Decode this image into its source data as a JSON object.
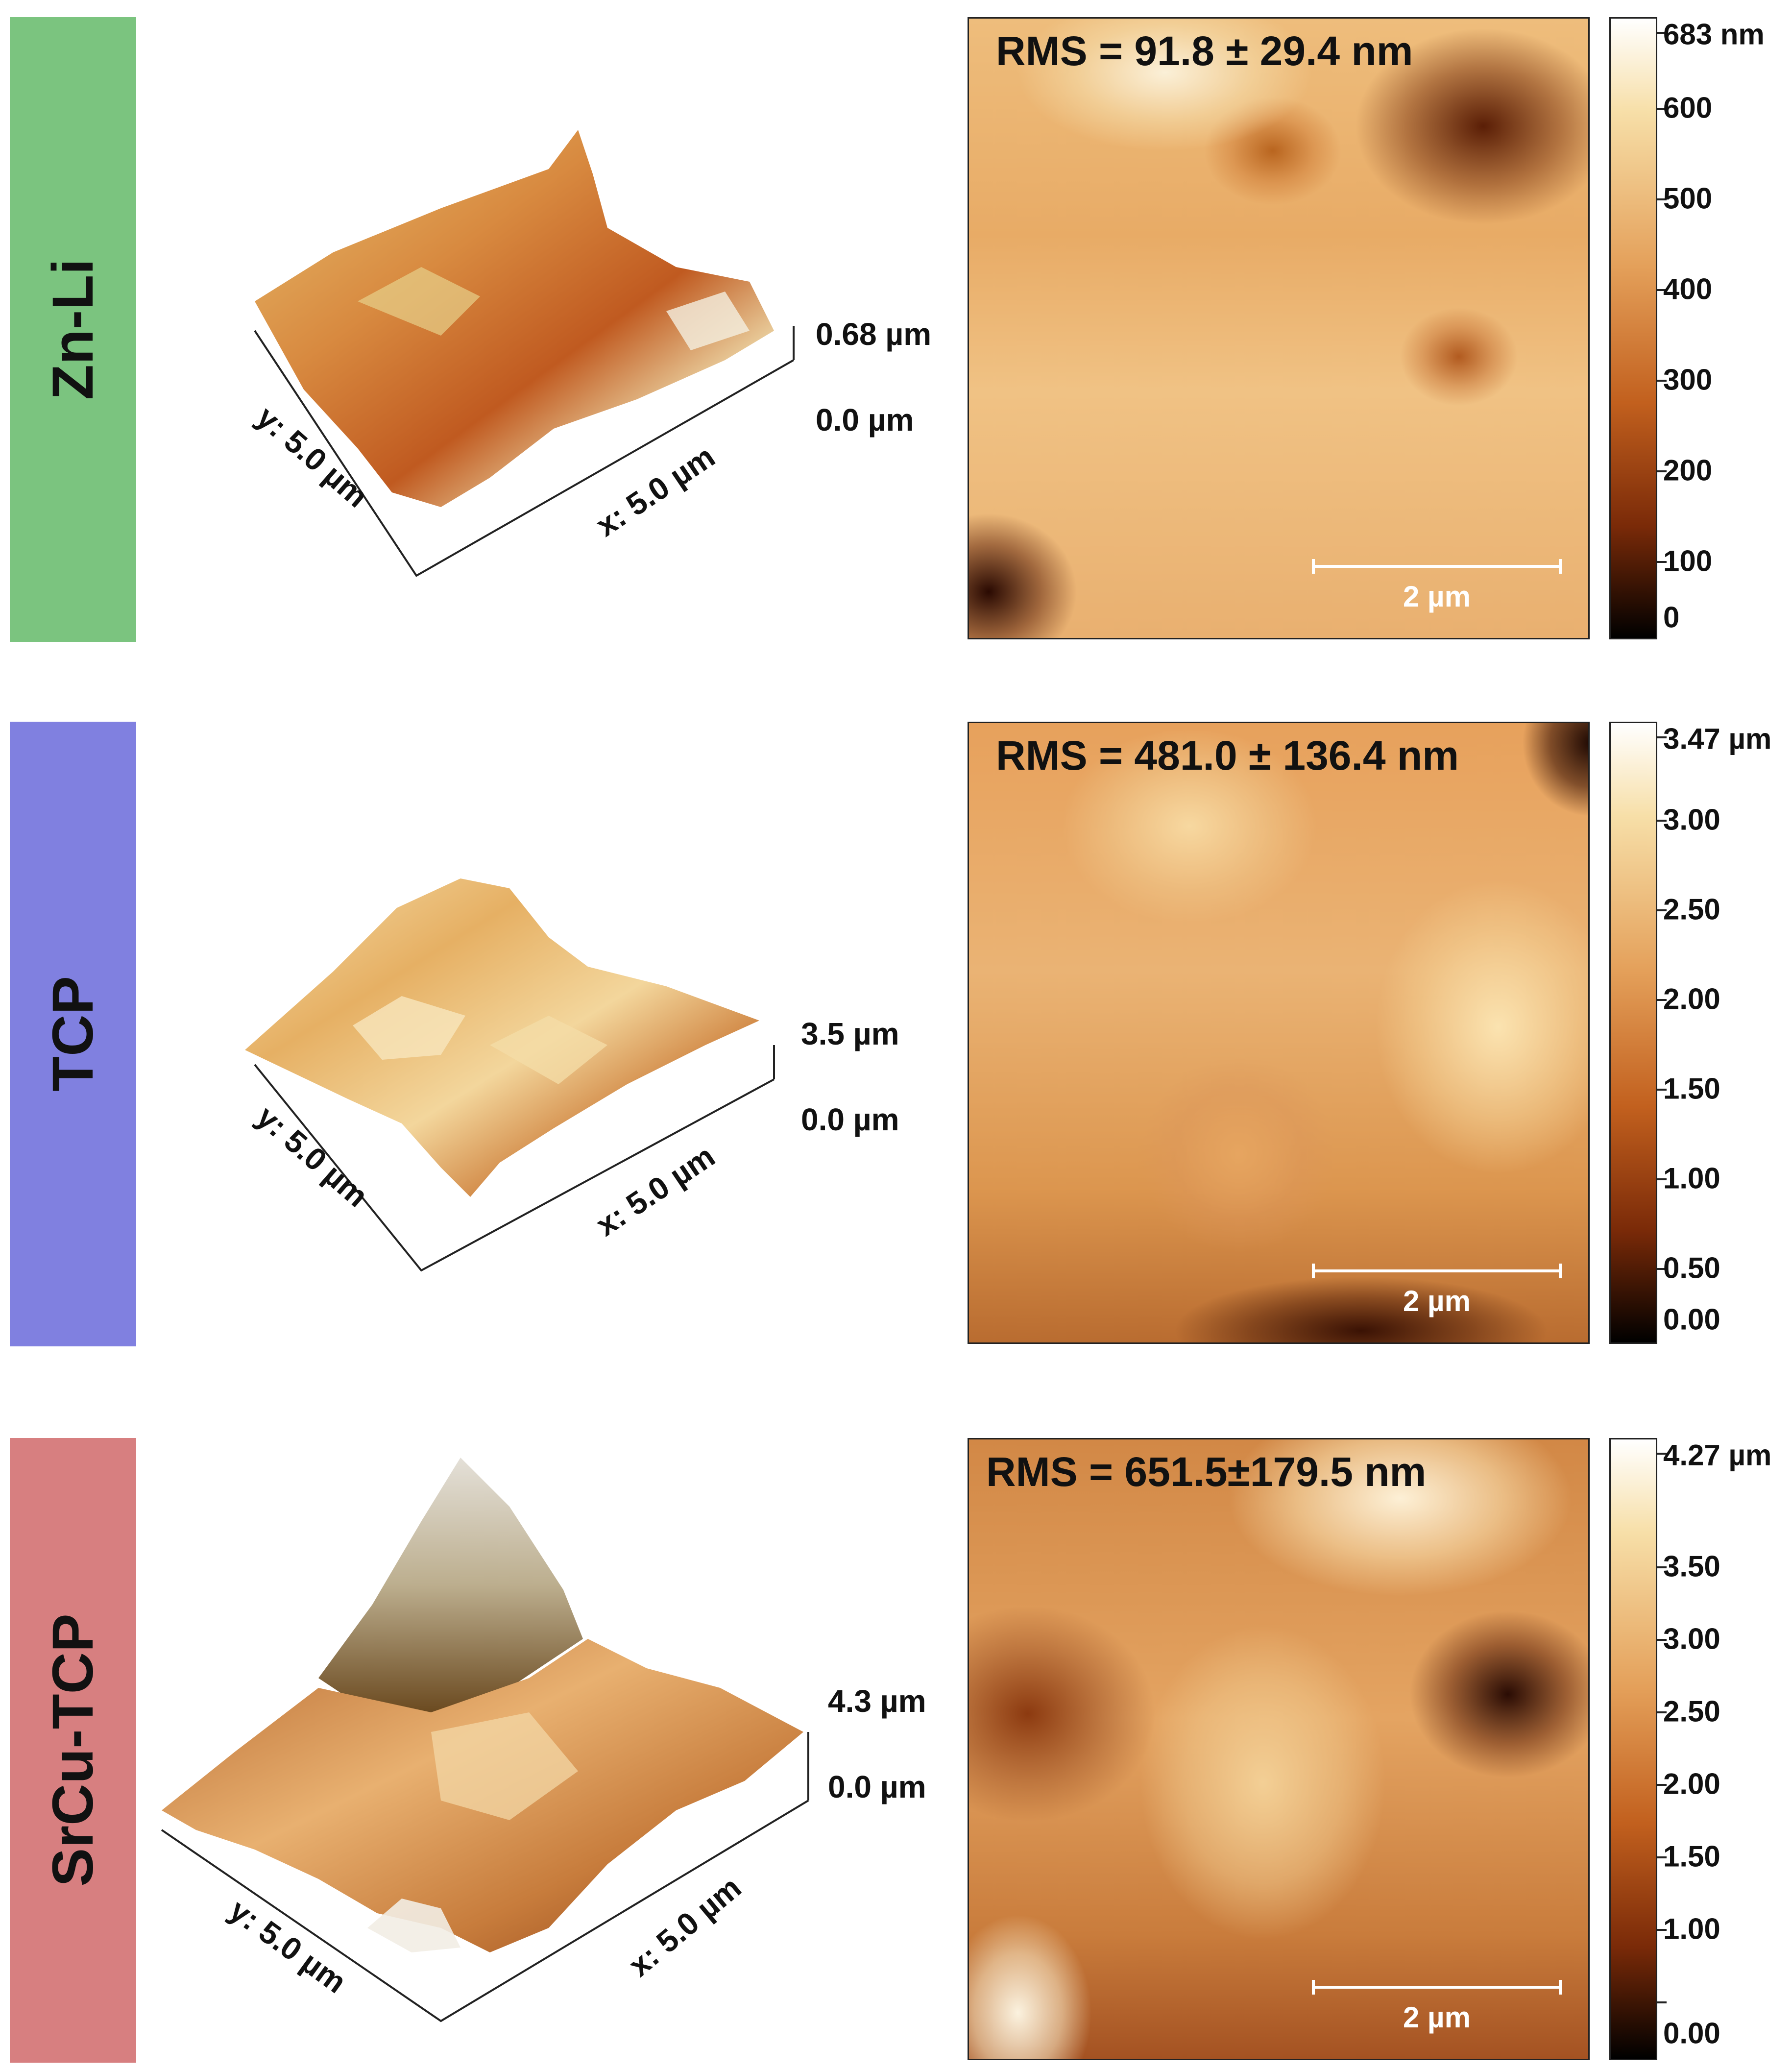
{
  "colors": {
    "zn_li_tab": "#7bc47f",
    "tcp_tab": "#8080e0",
    "srcu_tcp_tab": "#d77f80"
  },
  "panels": [
    {
      "sample": "Zn-Li",
      "y_axis": "y: 5.0 µm",
      "x_axis": "x: 5.0 µm",
      "z_max": "0.68 µm",
      "z_min": "0.0 µm",
      "rms": "RMS = 91.8 ± 29.4 nm",
      "scalebar": "2 µm",
      "colorbar_ticks": [
        "683 nm",
        "600",
        "500",
        "400",
        "300",
        "200",
        "100",
        "0"
      ]
    },
    {
      "sample": "TCP",
      "y_axis": "y: 5.0 µm",
      "x_axis": "x: 5.0 µm",
      "z_max": "3.5 µm",
      "z_min": "0.0 µm",
      "rms": "RMS = 481.0 ± 136.4 nm",
      "scalebar": "2 µm",
      "colorbar_ticks": [
        "3.47 µm",
        "3.00",
        "2.50",
        "2.00",
        "1.50",
        "1.00",
        "0.50",
        "0.00"
      ]
    },
    {
      "sample": "SrCu-TCP",
      "y_axis": "y: 5.0 µm",
      "x_axis": "x: 5.0 µm",
      "z_max": "4.3 µm",
      "z_min": "0.0 µm",
      "rms": "RMS = 651.5±179.5 nm",
      "scalebar": "2 µm",
      "colorbar_ticks": [
        "4.27 µm",
        "3.50",
        "3.00",
        "2.50",
        "2.00",
        "1.50",
        "1.00",
        "0.00"
      ]
    }
  ]
}
